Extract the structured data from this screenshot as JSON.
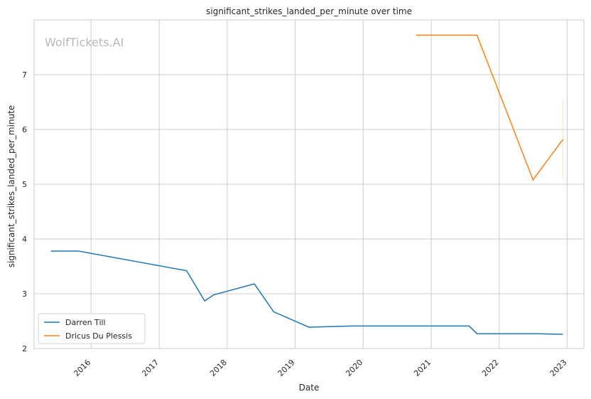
{
  "chart_data": {
    "type": "line",
    "title": "significant_strikes_landed_per_minute over time",
    "xlabel": "Date",
    "ylabel": "significant_strikes_landed_per_minute",
    "xlim": [
      "2015-03-01",
      "2023-04-01"
    ],
    "ylim": [
      2.0,
      8.0
    ],
    "x_ticks": [
      "2016",
      "2017",
      "2018",
      "2019",
      "2020",
      "2021",
      "2022",
      "2023"
    ],
    "y_ticks": [
      2,
      3,
      4,
      5,
      6,
      7
    ],
    "grid": true,
    "legend": "lower-left",
    "watermark": "WolfTickets.AI",
    "series": [
      {
        "name": "Darren Till",
        "color": "#1f77b4",
        "points": [
          {
            "x": "2015-05-30",
            "y": 3.78
          },
          {
            "x": "2015-10-24",
            "y": 3.78
          },
          {
            "x": "2017-05-28",
            "y": 3.42
          },
          {
            "x": "2017-09-02",
            "y": 2.87
          },
          {
            "x": "2017-10-21",
            "y": 2.98
          },
          {
            "x": "2018-05-27",
            "y": 3.18
          },
          {
            "x": "2018-09-08",
            "y": 2.67
          },
          {
            "x": "2019-03-16",
            "y": 2.39
          },
          {
            "x": "2019-11-02",
            "y": 2.41
          },
          {
            "x": "2021-07-24",
            "y": 2.41
          },
          {
            "x": "2021-09-04",
            "y": 2.27
          },
          {
            "x": "2022-07-23",
            "y": 2.27
          },
          {
            "x": "2022-12-10",
            "y": 2.26
          }
        ]
      },
      {
        "name": "Dricus Du Plessis",
        "color": "#ff7f0e",
        "points": [
          {
            "x": "2020-10-11",
            "y": 7.72
          },
          {
            "x": "2021-07-10",
            "y": 7.72
          },
          {
            "x": "2021-09-04",
            "y": 7.72
          },
          {
            "x": "2022-07-02",
            "y": 5.08
          },
          {
            "x": "2022-12-10",
            "y": 5.82
          }
        ],
        "band": {
          "x": "2022-12-10",
          "low": 5.1,
          "high": 6.55
        }
      }
    ]
  }
}
